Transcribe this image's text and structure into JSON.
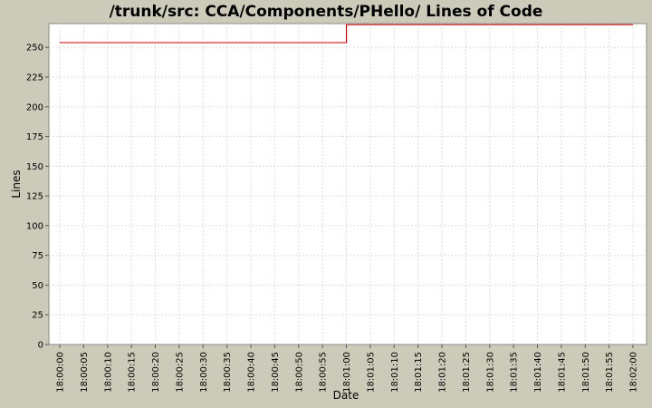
{
  "chart_data": {
    "type": "line",
    "title": "/trunk/src: CCA/Components/PHello/ Lines of Code",
    "xlabel": "Date",
    "ylabel": "Lines",
    "ylim": [
      0,
      270
    ],
    "y_ticks": [
      0,
      25,
      50,
      75,
      100,
      125,
      150,
      175,
      200,
      225,
      250
    ],
    "x_ticks": [
      "18:00:00",
      "18:00:05",
      "18:00:10",
      "18:00:15",
      "18:00:20",
      "18:00:25",
      "18:00:30",
      "18:00:35",
      "18:00:40",
      "18:00:45",
      "18:00:50",
      "18:00:55",
      "18:01:00",
      "18:01:05",
      "18:01:10",
      "18:01:15",
      "18:01:20",
      "18:01:25",
      "18:01:30",
      "18:01:35",
      "18:01:40",
      "18:01:45",
      "18:01:50",
      "18:01:55",
      "18:02:00"
    ],
    "x_range": [
      "18:00:00",
      "18:02:00"
    ],
    "grid": true,
    "line_style": "step",
    "series": [
      {
        "color": "#cc0000",
        "points": [
          {
            "x": "18:00:00",
            "y": 254
          },
          {
            "x": "18:01:00",
            "y": 254
          },
          {
            "x": "18:01:00",
            "y": 269
          },
          {
            "x": "18:02:00",
            "y": 269
          }
        ]
      }
    ]
  }
}
